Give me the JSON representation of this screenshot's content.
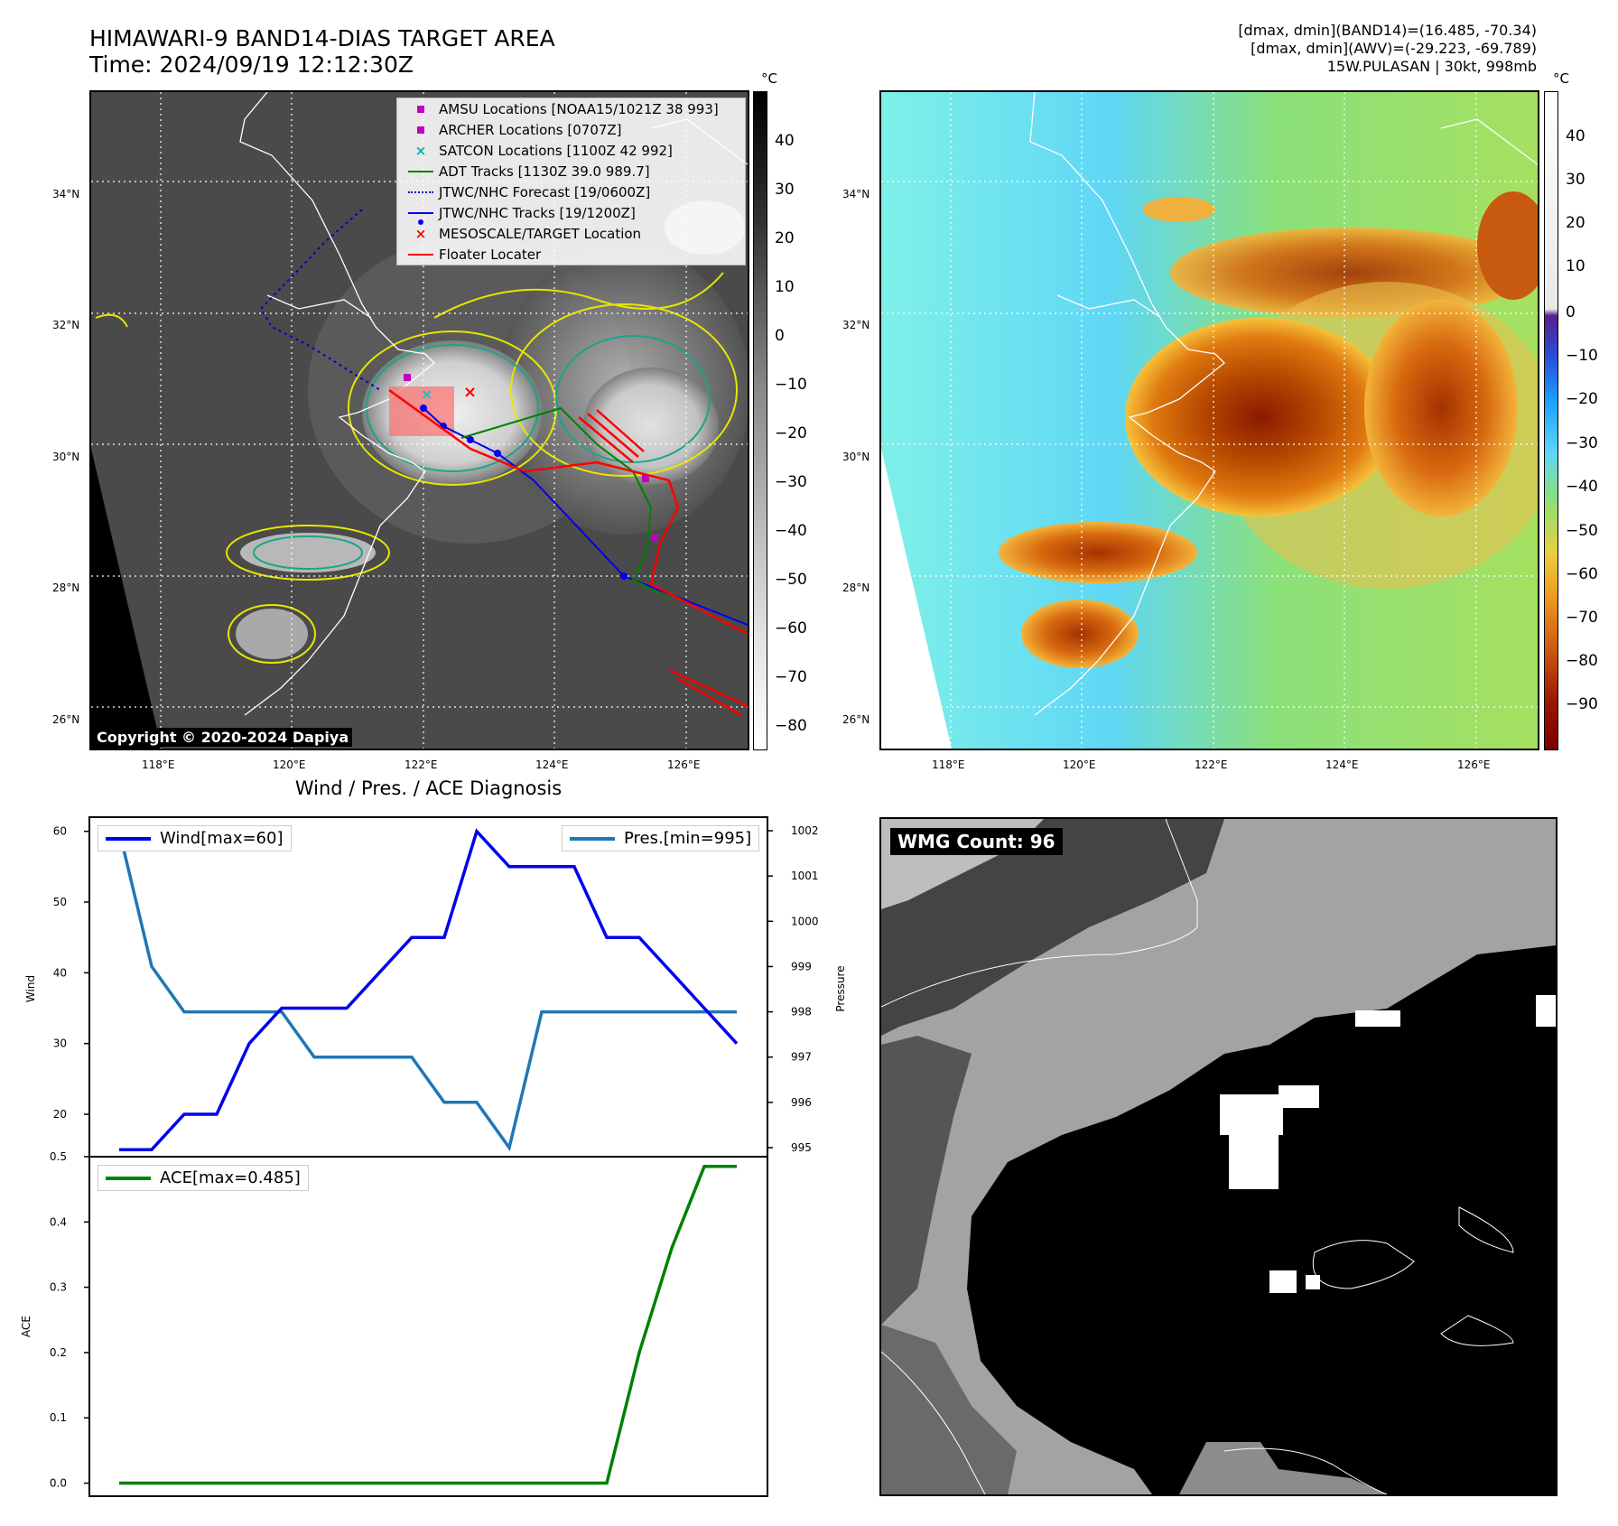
{
  "left_title": {
    "line1": "HIMAWARI-9 BAND14-DIAS TARGET AREA",
    "line2": "Time: 2024/09/19 12:12:30Z"
  },
  "right_title": {
    "line1": "[dmax, dmin](BAND14)=(16.485, -70.34)",
    "line2": "[dmax, dmin](AWV)=(-29.223, -69.789)",
    "line3": "15W.PULASAN | 30kt, 998mb"
  },
  "colors": {
    "wind": "#0000ee",
    "pressure": "#1f77b4",
    "ace": "#008000",
    "track_red": "#ff0000",
    "forecast": "#0000cc",
    "adt": "#008000"
  },
  "map": {
    "lat_ticks": [
      "34°N",
      "32°N",
      "30°N",
      "28°N",
      "26°N"
    ],
    "lon_ticks": [
      "118°E",
      "120°E",
      "122°E",
      "124°E",
      "126°E"
    ],
    "copyright": "Copyright © 2020-2024 Dapiya",
    "legend": [
      {
        "label": "AMSU Locations [NOAA15/1021Z 38 993]",
        "icon": "magenta-square"
      },
      {
        "label": "ARCHER Locations [0707Z]",
        "icon": "magenta-square"
      },
      {
        "label": "SATCON Locations [1100Z 42 992]",
        "icon": "cyan-x"
      },
      {
        "label": "ADT Tracks [1130Z 39.0 989.7]",
        "icon": "green-line"
      },
      {
        "label": "JTWC/NHC Forecast [19/0600Z]",
        "icon": "blue-dotted-line"
      },
      {
        "label": "JTWC/NHC Tracks [19/1200Z]",
        "icon": "blue-dot-line"
      },
      {
        "label": "MESOSCALE/TARGET Location",
        "icon": "red-x"
      },
      {
        "label": "Floater Locater",
        "icon": "red-line"
      }
    ]
  },
  "colorbar_left": {
    "unit": "°C",
    "ticks": [
      "40",
      "30",
      "20",
      "10",
      "0",
      "−10",
      "−20",
      "−30",
      "−40",
      "−50",
      "−60",
      "−70",
      "−80"
    ]
  },
  "colorbar_right": {
    "unit": "°C",
    "ticks": [
      "40",
      "30",
      "20",
      "10",
      "0",
      "−10",
      "−20",
      "−30",
      "−40",
      "−50",
      "−60",
      "−70",
      "−80",
      "−90"
    ]
  },
  "diagnosis": {
    "title": "Wind / Pres. / ACE Diagnosis",
    "wind_axis_label": "Wind",
    "pressure_axis_label": "Pressure",
    "ace_axis_label": "ACE",
    "wind_legend": "Wind[max=60]",
    "pressure_legend": "Pres.[min=995]",
    "ace_legend": "ACE[max=0.485]",
    "wind_ticks": [
      "60",
      "50",
      "40",
      "30",
      "20"
    ],
    "pressure_ticks": [
      "1002",
      "1001",
      "1000",
      "999",
      "998",
      "997",
      "996",
      "995"
    ],
    "ace_ticks": [
      "0.5",
      "0.4",
      "0.3",
      "0.2",
      "0.1",
      "0.0"
    ]
  },
  "wmg": {
    "label": "WMG Count: 96"
  },
  "chart_data": [
    {
      "type": "line",
      "title": "",
      "xlabel": "",
      "ylabel": "Wind",
      "ylim": [
        14,
        62
      ],
      "series": [
        {
          "name": "Wind[max=60]",
          "values": [
            15,
            15,
            20,
            20,
            30,
            35,
            35,
            35,
            40,
            45,
            45,
            60,
            55,
            55,
            55,
            45,
            45,
            40,
            35,
            30
          ]
        }
      ]
    },
    {
      "type": "line",
      "title": "",
      "xlabel": "",
      "ylabel": "Pressure",
      "ylim": [
        994.8,
        1002.3
      ],
      "series": [
        {
          "name": "Pres.[min=995]",
          "values": [
            1002,
            999,
            998,
            998,
            998,
            998,
            997,
            997,
            997,
            997,
            996,
            996,
            995,
            998,
            998,
            998,
            998,
            998,
            998,
            998
          ]
        }
      ]
    },
    {
      "type": "line",
      "title": "",
      "xlabel": "",
      "ylabel": "ACE",
      "ylim": [
        -0.02,
        0.5
      ],
      "series": [
        {
          "name": "ACE[max=0.485]",
          "values": [
            0,
            0,
            0,
            0,
            0,
            0,
            0,
            0,
            0,
            0,
            0,
            0,
            0,
            0,
            0,
            0,
            0.2,
            0.36,
            0.485,
            0.485
          ]
        }
      ]
    }
  ]
}
